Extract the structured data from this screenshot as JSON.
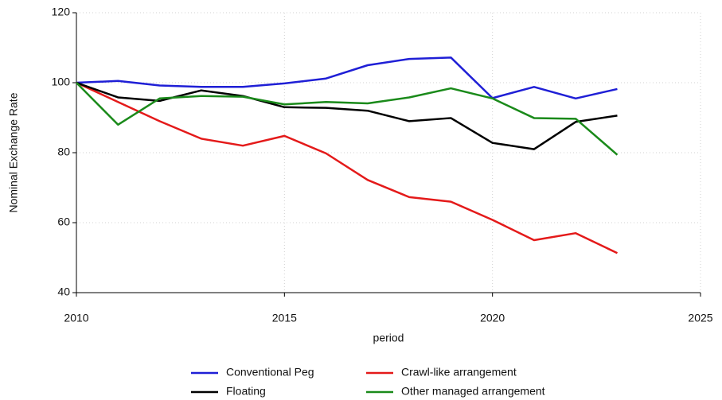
{
  "chart_data": {
    "type": "line",
    "x_label": "period",
    "y_label": "Nominal Exchange Rate",
    "x": [
      2010,
      2011,
      2012,
      2013,
      2014,
      2015,
      2016,
      2017,
      2018,
      2019,
      2020,
      2021,
      2022,
      2023
    ],
    "series": [
      {
        "name": "Conventional Peg",
        "color": "#1f1fd6",
        "values": [
          100,
          100.5,
          99.2,
          98.8,
          98.8,
          99.8,
          101.2,
          105,
          106.8,
          107.2,
          95.6,
          98.8,
          95.5,
          98.2
        ]
      },
      {
        "name": "Crawl-like arrangement",
        "color": "#e41a1a",
        "values": [
          100,
          94.5,
          89,
          84,
          82,
          84.8,
          79.8,
          72.2,
          67.3,
          66,
          60.8,
          55,
          57,
          51.3
        ]
      },
      {
        "name": "Floating",
        "color": "#000000",
        "values": [
          100,
          95.8,
          94.8,
          97.8,
          96.2,
          93,
          92.8,
          92,
          89,
          89.9,
          82.8,
          81,
          88.8,
          90.6
        ]
      },
      {
        "name": "Other managed arrangement",
        "color": "#1a8a1a",
        "values": [
          100,
          88,
          95.5,
          96.2,
          96,
          93.8,
          94.5,
          94.1,
          95.8,
          98.4,
          95.5,
          89.9,
          89.7,
          79.4
        ]
      }
    ],
    "xlim": [
      2010,
      2025
    ],
    "xticks": [
      2010,
      2015,
      2020,
      2025
    ],
    "ylim": [
      40,
      120
    ],
    "yticks": [
      40,
      60,
      80,
      100,
      120
    ],
    "grid": true,
    "legend": "bottom"
  }
}
